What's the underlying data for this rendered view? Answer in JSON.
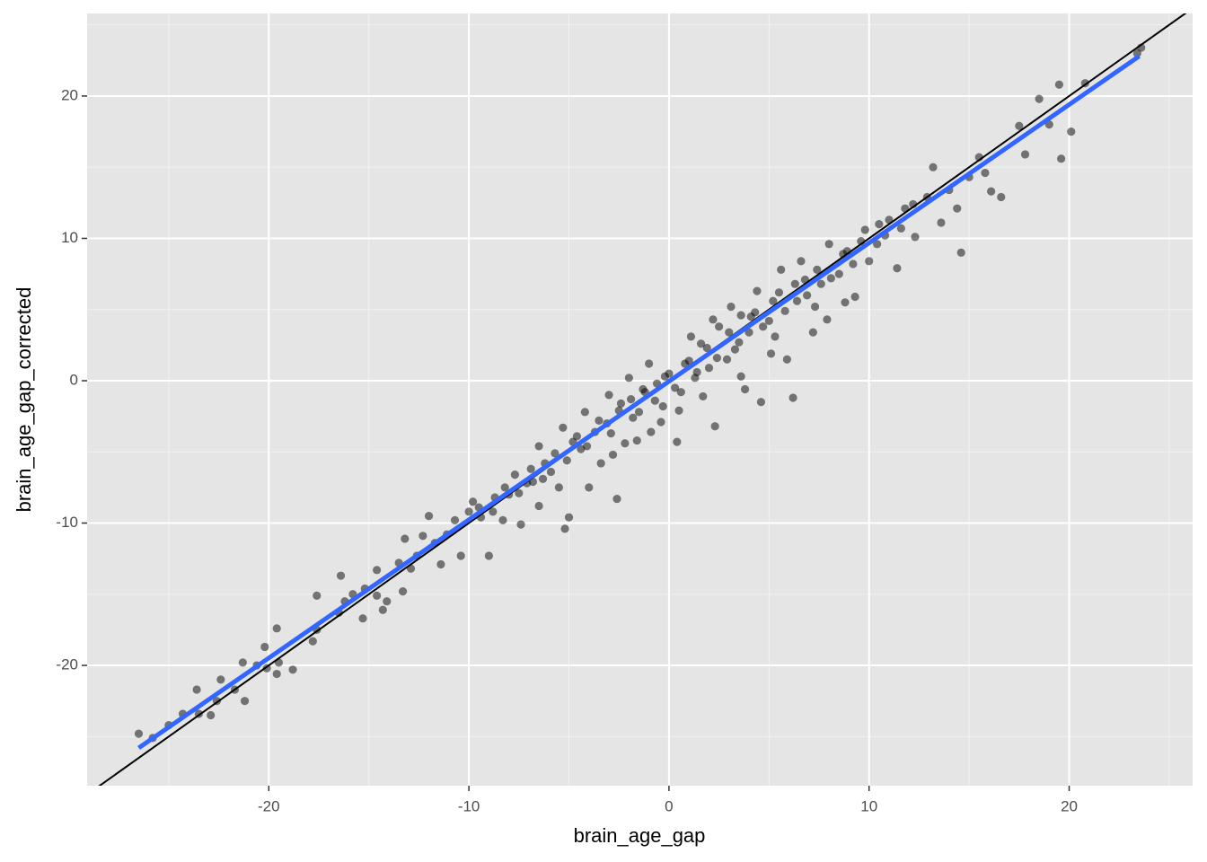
{
  "chart_data": {
    "type": "scatter",
    "x_label": "brain_age_gap",
    "y_label": "brain_age_gap_corrected",
    "xlim": [
      -29.08,
      26.17
    ],
    "ylim": [
      -28.45,
      25.8
    ],
    "xticks": [
      -20,
      -10,
      0,
      10,
      20
    ],
    "yticks": [
      -20,
      -10,
      0,
      10,
      20
    ],
    "xminor": [
      -25,
      -15,
      -5,
      5,
      15,
      25
    ],
    "yminor": [
      -25,
      -15,
      -5,
      5,
      15,
      25
    ],
    "grid": true,
    "color": "#000000",
    "opacity": 0.5,
    "x": [
      -26.5,
      -25.8,
      -25,
      -24.3,
      -23.6,
      -23.5,
      -22.9,
      -22.6,
      -22.4,
      -21.7,
      -21.3,
      -21.2,
      -20.6,
      -20.1,
      -20.2,
      -19.6,
      -19.6,
      -19.5,
      -18.8,
      -17.8,
      -17.6,
      -17.6,
      -16.5,
      -16.4,
      -16.2,
      -15.8,
      -15.3,
      -15.2,
      -14.6,
      -14.6,
      -14.3,
      -14.1,
      -13.5,
      -13.3,
      -13.2,
      -12.9,
      -12.6,
      -12.3,
      -12,
      -11.7,
      -11.4,
      -11.1,
      -10.7,
      -10.4,
      -10,
      -9.8,
      -9.4,
      -9,
      -8.7,
      -8.3,
      -8,
      -7.7,
      -7.4,
      -7.1,
      -6.8,
      -6.5,
      -6.2,
      -5.9,
      -5.5,
      -5.2,
      -5,
      -4.8,
      -4.4,
      -4,
      -3.7,
      -3.4,
      -3.1,
      -2.6,
      -2.5,
      -2.2,
      -1.9,
      -1.5,
      -1.2,
      -0.9,
      -0.6,
      -0.3,
      0,
      0.4,
      0.6,
      1,
      1.3,
      1.6,
      2,
      2.3,
      2.5,
      2.9,
      3.3,
      3.6,
      3.8,
      4,
      4.3,
      4.6,
      5,
      5.3,
      5.5,
      5.9,
      6.2,
      6.4,
      6.8,
      7.2,
      7.6,
      7.9,
      8,
      8.5,
      8.9,
      9.3,
      9.6,
      10,
      10.5,
      10.8,
      11.4,
      11.8,
      12.3,
      12.9,
      13.2,
      13.6,
      14,
      14.4,
      14.6,
      15,
      15.5,
      15.8,
      16.1,
      16.6,
      17.5,
      17.8,
      18.5,
      19,
      19.5,
      19.6,
      20.1,
      20.8,
      23.4,
      23.6,
      -9.5,
      -8.8,
      -8.2,
      -7.5,
      -6.9,
      -6.3,
      -5.7,
      -5.1,
      -4.6,
      -4.1,
      -3.5,
      -2.9,
      -2.4,
      -1.8,
      -1.3,
      -0.7,
      -0.2,
      0.3,
      0.8,
      1.4,
      1.9,
      2.4,
      3,
      3.5,
      4.1,
      4.7,
      5.2,
      5.8,
      6.3,
      6.9,
      7.4,
      8.1,
      8.7,
      9.2,
      9.8,
      10.4,
      11,
      11.6,
      12.2,
      1.1,
      2.2,
      3.1,
      4.4,
      5.6,
      6.6,
      -1,
      -2,
      -3,
      -4.2,
      -5.3,
      -6.5,
      0.5,
      1.7,
      3.6,
      5.1,
      7.3,
      8.8,
      -0.4,
      -1.6,
      -2.8
    ],
    "y": [
      -24.8,
      -25.1,
      -24.2,
      -23.4,
      -21.7,
      -23.4,
      -23.5,
      -22.5,
      -21,
      -21.7,
      -19.8,
      -22.5,
      -20,
      -20.2,
      -18.7,
      -20.6,
      -17.4,
      -19.8,
      -20.3,
      -18.3,
      -17.5,
      -15.1,
      -16.3,
      -13.7,
      -15.5,
      -15,
      -16.7,
      -14.6,
      -13.3,
      -15.1,
      -16.1,
      -15.5,
      -12.8,
      -14.8,
      -11.1,
      -13.2,
      -12.3,
      -10.9,
      -9.5,
      -11.4,
      -12.9,
      -10.8,
      -9.8,
      -12.3,
      -9.2,
      -8.5,
      -9.6,
      -12.3,
      -8.2,
      -9.8,
      -8,
      -6.6,
      -10.1,
      -7.2,
      -7.1,
      -8.8,
      -5.8,
      -6.4,
      -7.5,
      -10.4,
      -9.6,
      -4.3,
      -4.8,
      -7.5,
      -3.6,
      -5.8,
      -3,
      -8.3,
      -2.1,
      -4.4,
      -1.3,
      -2.2,
      -0.8,
      -3.6,
      -0.2,
      -1.8,
      0.5,
      -4.3,
      -0.8,
      1.4,
      0.2,
      2.6,
      0.9,
      -3.2,
      3.8,
      1.5,
      2.2,
      4.6,
      -0.6,
      3.4,
      4.8,
      -1.5,
      4.2,
      3.1,
      6.2,
      1.5,
      -1.2,
      5.6,
      7.1,
      3.4,
      6.8,
      4.3,
      9.6,
      7.5,
      9.1,
      5.9,
      9.8,
      8.4,
      11,
      10.2,
      7.9,
      12.1,
      10.1,
      12.9,
      15,
      11.1,
      13.4,
      12.1,
      9,
      14.3,
      15.7,
      14.6,
      13.3,
      12.9,
      17.9,
      15.9,
      19.8,
      18,
      20.8,
      15.6,
      17.5,
      20.9,
      23,
      23.4,
      -8.9,
      -9.2,
      -7.5,
      -7.9,
      -6.2,
      -6.9,
      -5.1,
      -5.6,
      -3.9,
      -4.6,
      -2.8,
      -3.7,
      -1.6,
      -2.6,
      -0.6,
      -1.4,
      0.3,
      -0.5,
      1.2,
      0.6,
      2.3,
      1.6,
      3.4,
      2.7,
      4.5,
      3.8,
      5.6,
      4.9,
      6.8,
      6,
      7.8,
      7.2,
      8.9,
      8.2,
      10.6,
      9.6,
      11.3,
      10.7,
      12.4,
      3.1,
      4.3,
      5.2,
      6.3,
      7.8,
      8.4,
      1.2,
      0.2,
      -1,
      -2.2,
      -3.3,
      -4.6,
      -2.1,
      -1.1,
      0.3,
      1.9,
      5.2,
      5.5,
      -2.9,
      -4.2,
      -5.2
    ],
    "identity_line": {
      "slope": 1,
      "intercept": 0,
      "color": "#000000"
    },
    "fit_line": {
      "x": [
        -26.5,
        23.5
      ],
      "y": [
        -25.8,
        22.8
      ],
      "color": "#3366ff"
    }
  }
}
